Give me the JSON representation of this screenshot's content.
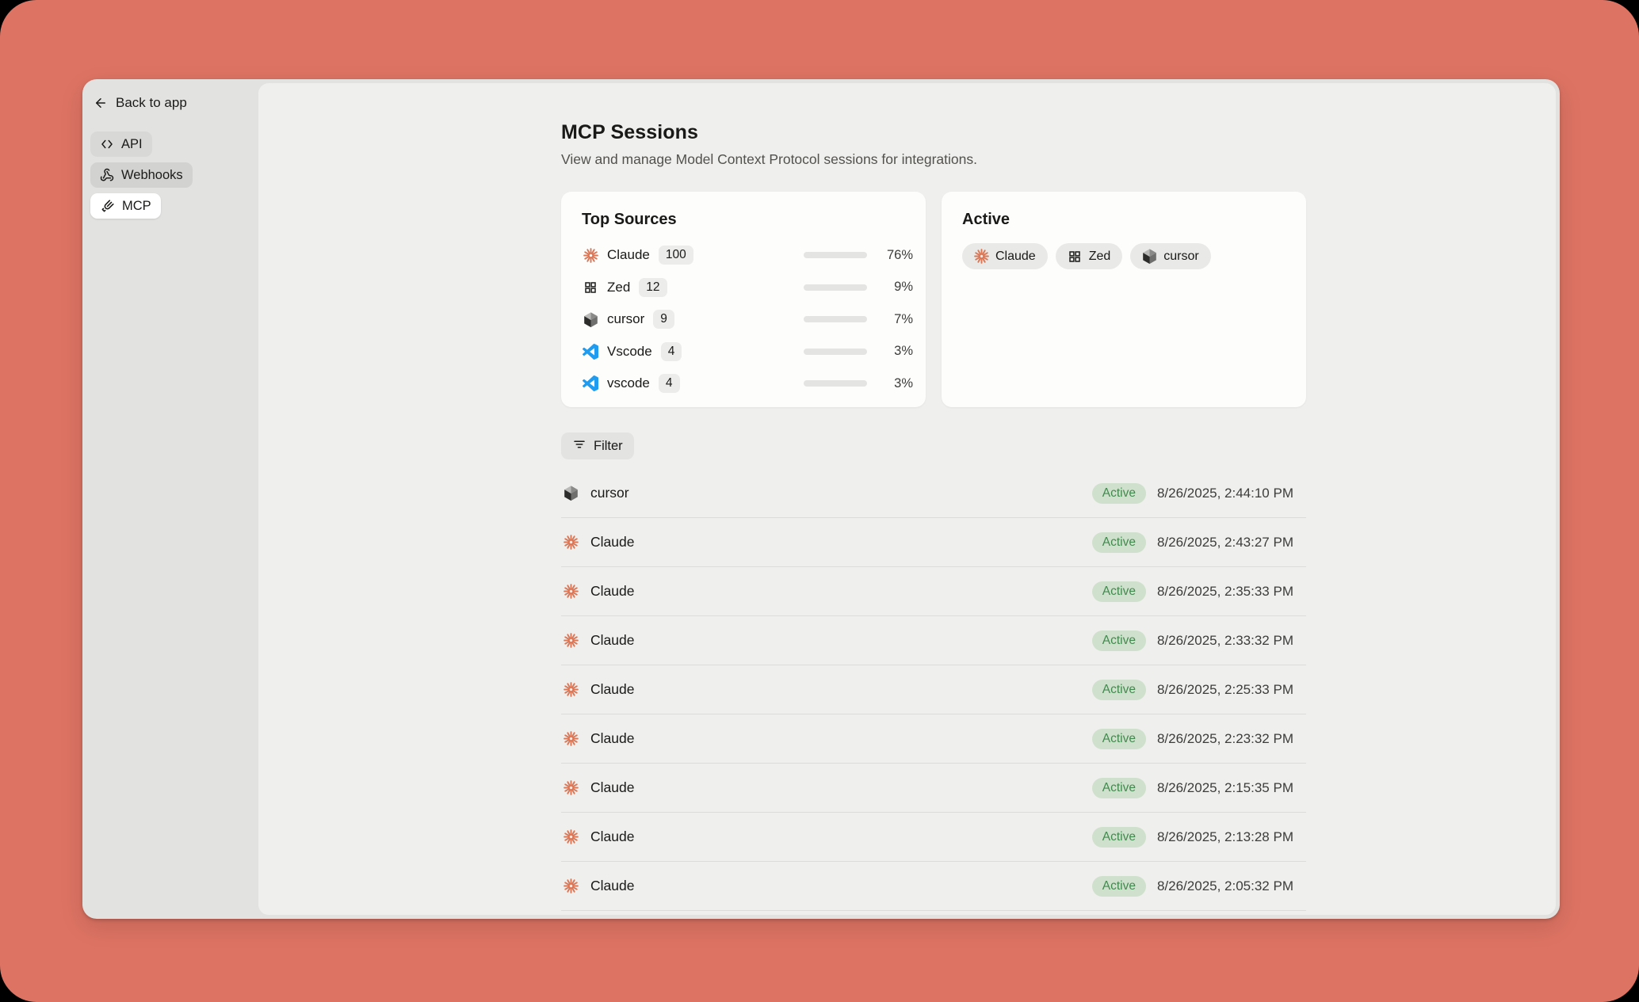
{
  "colors": {
    "page_background": "#dd7363",
    "window_background": "#e2e2e0",
    "main_background": "#efefed",
    "card_background": "#fdfdfc",
    "progress_fill": "#bf584a",
    "claude_brand": "#d97757",
    "vscode_brand": "#1f9cf0",
    "active_badge_bg": "#cfe1cc",
    "active_badge_text": "#418a4e"
  },
  "sidebar": {
    "back_label": "Back to app",
    "items": [
      {
        "label": "API",
        "icon": "code",
        "selected": false
      },
      {
        "label": "Webhooks",
        "icon": "webhook",
        "selected": false
      },
      {
        "label": "MCP",
        "icon": "mcp",
        "selected": true
      }
    ]
  },
  "header": {
    "title": "MCP Sessions",
    "subtitle": "View and manage Model Context Protocol sessions for integrations."
  },
  "top_sources": {
    "title": "Top Sources",
    "rows": [
      {
        "name": "Claude",
        "count": "100",
        "percent": 76,
        "percent_label": "76%",
        "icon": "claude"
      },
      {
        "name": "Zed",
        "count": "12",
        "percent": 9,
        "percent_label": "9%",
        "icon": "zed"
      },
      {
        "name": "cursor",
        "count": "9",
        "percent": 7,
        "percent_label": "7%",
        "icon": "cursor"
      },
      {
        "name": "Vscode",
        "count": "4",
        "percent": 3,
        "percent_label": "3%",
        "icon": "vscode"
      },
      {
        "name": "vscode",
        "count": "4",
        "percent": 3,
        "percent_label": "3%",
        "icon": "vscode"
      }
    ]
  },
  "active_card": {
    "title": "Active",
    "chips": [
      {
        "label": "Claude",
        "icon": "claude"
      },
      {
        "label": "Zed",
        "icon": "zed"
      },
      {
        "label": "cursor",
        "icon": "cursor"
      }
    ]
  },
  "filter": {
    "label": "Filter"
  },
  "sessions": [
    {
      "name": "cursor",
      "icon": "cursor",
      "status": "Active",
      "timestamp": "8/26/2025, 2:44:10 PM"
    },
    {
      "name": "Claude",
      "icon": "claude",
      "status": "Active",
      "timestamp": "8/26/2025, 2:43:27 PM"
    },
    {
      "name": "Claude",
      "icon": "claude",
      "status": "Active",
      "timestamp": "8/26/2025, 2:35:33 PM"
    },
    {
      "name": "Claude",
      "icon": "claude",
      "status": "Active",
      "timestamp": "8/26/2025, 2:33:32 PM"
    },
    {
      "name": "Claude",
      "icon": "claude",
      "status": "Active",
      "timestamp": "8/26/2025, 2:25:33 PM"
    },
    {
      "name": "Claude",
      "icon": "claude",
      "status": "Active",
      "timestamp": "8/26/2025, 2:23:32 PM"
    },
    {
      "name": "Claude",
      "icon": "claude",
      "status": "Active",
      "timestamp": "8/26/2025, 2:15:35 PM"
    },
    {
      "name": "Claude",
      "icon": "claude",
      "status": "Active",
      "timestamp": "8/26/2025, 2:13:28 PM"
    },
    {
      "name": "Claude",
      "icon": "claude",
      "status": "Active",
      "timestamp": "8/26/2025, 2:05:32 PM"
    }
  ]
}
